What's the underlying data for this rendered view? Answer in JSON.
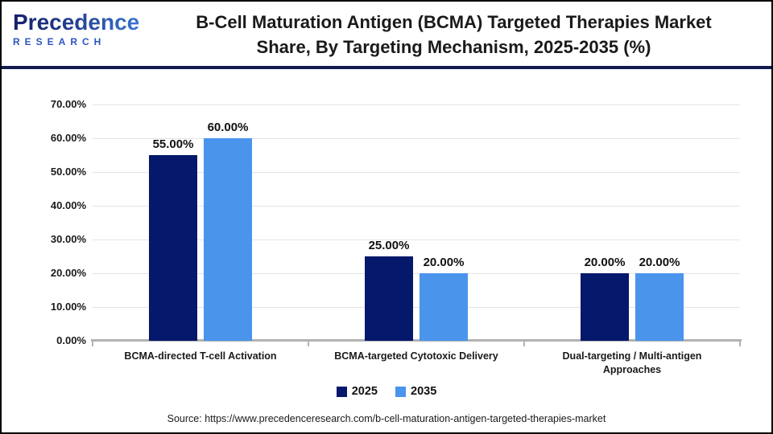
{
  "header": {
    "logo": {
      "brand": "Precedence",
      "sub": "RESEARCH"
    },
    "title_line1": "B-Cell Maturation Antigen (BCMA) Targeted Therapies Market",
    "title_line2": "Share, By Targeting Mechanism, 2025-2035 (%)"
  },
  "chart_data": {
    "type": "bar",
    "title": "B-Cell Maturation Antigen (BCMA) Targeted Therapies Market Share, By Targeting Mechanism, 2025-2035 (%)",
    "categories": [
      "BCMA-directed T-cell Activation",
      "BCMA-targeted Cytotoxic Delivery",
      "Dual-targeting / Multi-antigen Approaches"
    ],
    "series": [
      {
        "name": "2025",
        "color": "#05186B",
        "values": [
          55,
          25,
          20
        ],
        "labels": [
          "55.00%",
          "25.00%",
          "20.00%"
        ]
      },
      {
        "name": "2035",
        "color": "#4A94EC",
        "values": [
          60,
          20,
          20
        ],
        "labels": [
          "60.00%",
          "20.00%",
          "20.00%"
        ]
      }
    ],
    "ylim": [
      0,
      70
    ],
    "ytick_step": 10,
    "ytick_labels": [
      "0.00%",
      "10.00%",
      "20.00%",
      "30.00%",
      "40.00%",
      "50.00%",
      "60.00%",
      "70.00%"
    ],
    "grid": true,
    "legend_position": "bottom"
  },
  "colors": {
    "series_2025": "#05186B",
    "series_2035": "#4A94EC",
    "header_divider": "#111C4E",
    "gridline": "#E4E4E4",
    "axis": "#B3B3B3"
  },
  "source": "Source: https://www.precedenceresearch.com/b-cell-maturation-antigen-targeted-therapies-market"
}
